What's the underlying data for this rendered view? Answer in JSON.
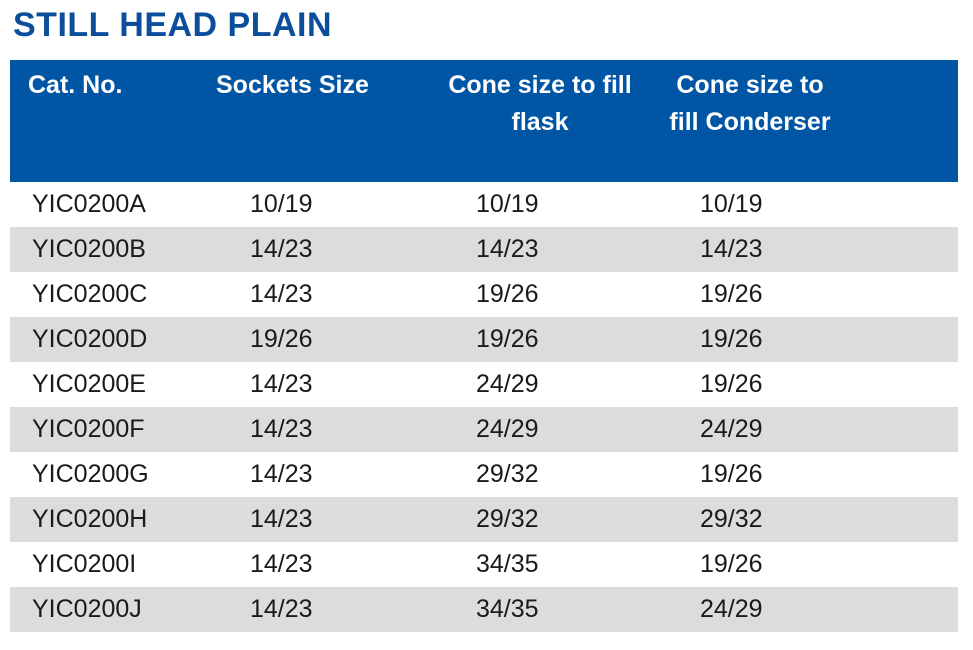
{
  "title": "STILL HEAD PLAIN",
  "headers": {
    "cat_no": "Cat. No.",
    "sockets_size": "Sockets Size",
    "cone_flask": "Cone size to fill flask",
    "cone_condenser": "Cone size to fill Conderser"
  },
  "rows": [
    {
      "cat": "YIC0200A",
      "socket": "10/19",
      "flask": "10/19",
      "condenser": "10/19"
    },
    {
      "cat": "YIC0200B",
      "socket": "14/23",
      "flask": "14/23",
      "condenser": "14/23"
    },
    {
      "cat": "YIC0200C",
      "socket": "14/23",
      "flask": "19/26",
      "condenser": "19/26"
    },
    {
      "cat": "YIC0200D",
      "socket": "19/26",
      "flask": "19/26",
      "condenser": "19/26"
    },
    {
      "cat": "YIC0200E",
      "socket": "14/23",
      "flask": "24/29",
      "condenser": "19/26"
    },
    {
      "cat": "YIC0200F",
      "socket": "14/23",
      "flask": "24/29",
      "condenser": "24/29"
    },
    {
      "cat": "YIC0200G",
      "socket": "14/23",
      "flask": "29/32",
      "condenser": "19/26"
    },
    {
      "cat": "YIC0200H",
      "socket": "14/23",
      "flask": "29/32",
      "condenser": "29/32"
    },
    {
      "cat": "YIC0200I",
      "socket": "14/23",
      "flask": "34/35",
      "condenser": "19/26"
    },
    {
      "cat": "YIC0200J",
      "socket": "14/23",
      "flask": "34/35",
      "condenser": "24/29"
    }
  ],
  "colors": {
    "header_bg": "#0055a4",
    "title": "#0b4f9c",
    "stripe": "#dcdcdc"
  }
}
